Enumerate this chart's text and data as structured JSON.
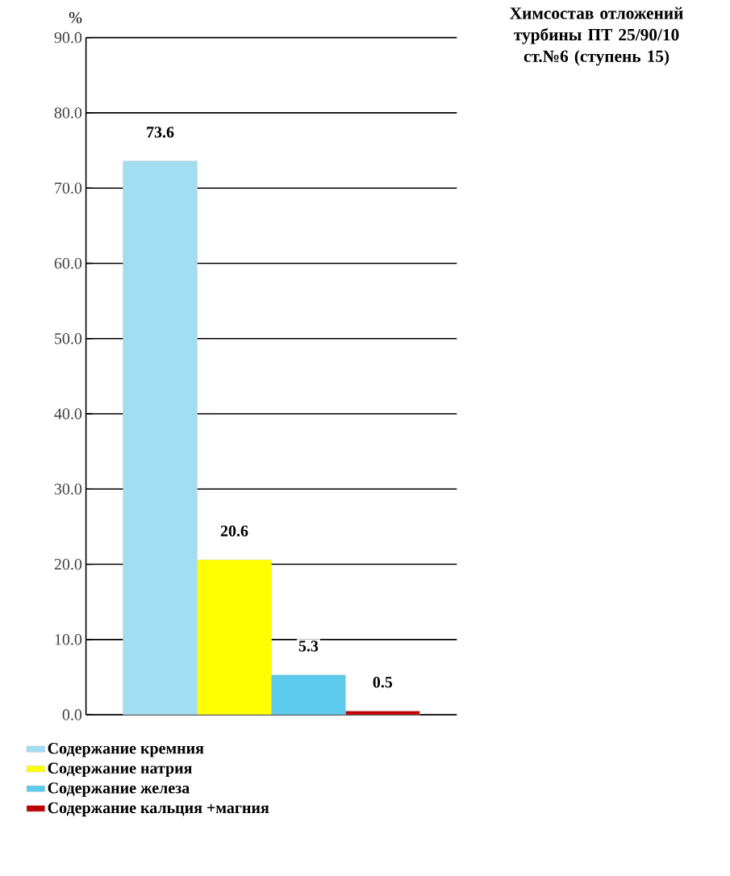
{
  "chart_data": {
    "type": "bar",
    "title": "Химсостав отложений турбины ПТ 25/90/10 ст.№6 (ступень 15)",
    "ylabel": "%",
    "categories": [
      null
    ],
    "series": [
      {
        "name": "Содержание кремния",
        "color": "#a2def2",
        "values": [
          73.6
        ]
      },
      {
        "name": "Содержание натрия",
        "color": "#ffff00",
        "values": [
          20.6
        ]
      },
      {
        "name": "Содержание железа",
        "color": "#5ccaec",
        "values": [
          5.3
        ]
      },
      {
        "name": "Содержание кальция +магния",
        "color": "#c00000",
        "values": [
          0.5
        ]
      }
    ],
    "ylim": [
      0,
      90
    ],
    "yticks": [
      {
        "value": 0,
        "label": "0.0"
      },
      {
        "value": 10,
        "label": "10.0"
      },
      {
        "value": 20,
        "label": "20.0"
      },
      {
        "value": 30,
        "label": "30.0"
      },
      {
        "value": 40,
        "label": "40.0"
      },
      {
        "value": 50,
        "label": "50.0"
      },
      {
        "value": 60,
        "label": "60.0"
      },
      {
        "value": 70,
        "label": "70.0"
      },
      {
        "value": 80,
        "label": "80.0"
      },
      {
        "value": 90,
        "label": "90.0"
      }
    ],
    "grid": "y",
    "legend": "bottom left",
    "data_labels": true
  }
}
